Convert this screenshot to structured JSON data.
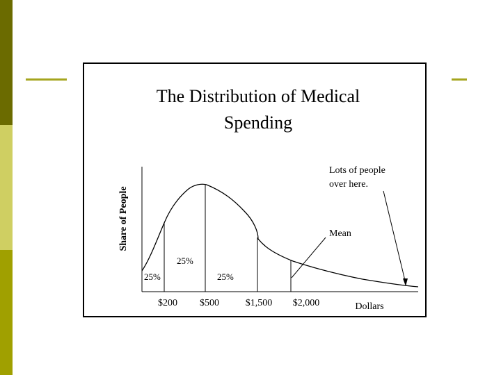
{
  "chart_data": {
    "type": "area",
    "title_line1": "The Distribution of Medical",
    "title_line2": "Spending",
    "xlabel": "Dollars",
    "ylabel": "Share of People",
    "tick_labels": [
      "$200",
      "$500",
      "$1,500",
      "$2,000"
    ],
    "segment_labels": [
      "25%",
      "25%",
      "25%"
    ],
    "annotations": {
      "tail_line1": "Lots of people",
      "tail_line2": "over here.",
      "mean": "Mean"
    }
  },
  "colors": {
    "sidebar_dark": "#6b6b00",
    "sidebar_light": "#cfcf62",
    "sidebar_mid": "#a0a000",
    "rule": "#a5a51e"
  }
}
